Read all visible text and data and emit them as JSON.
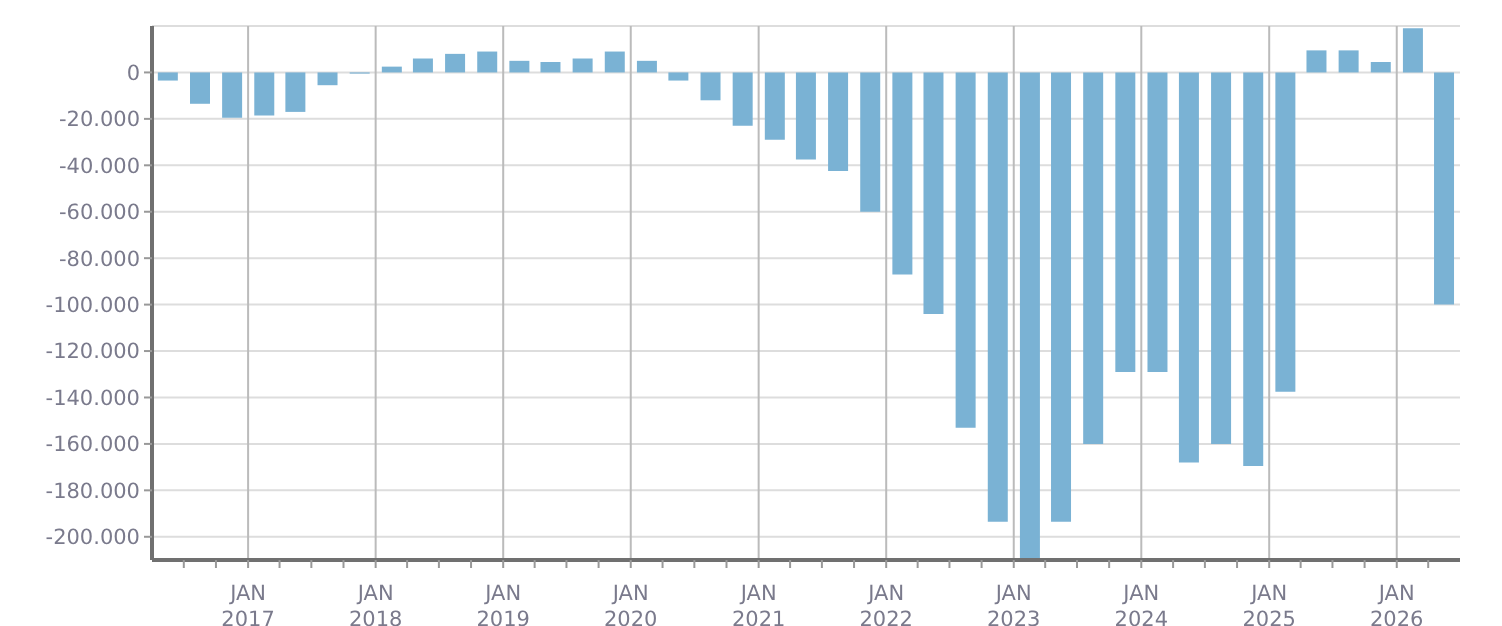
{
  "chart_data": {
    "type": "bar",
    "color": "#7ab2d4",
    "x": [
      "2016-05-15",
      "2016-08-15",
      "2016-11-15",
      "2017-02-15",
      "2017-05-15",
      "2017-08-15",
      "2017-11-15",
      "2018-02-15",
      "2018-05-15",
      "2018-08-15",
      "2018-11-15",
      "2019-02-15",
      "2019-05-15",
      "2019-08-15",
      "2019-11-15",
      "2020-02-15",
      "2020-05-15",
      "2020-08-15",
      "2020-11-15",
      "2021-02-15",
      "2021-05-15",
      "2021-08-15",
      "2021-11-15",
      "2022-02-15",
      "2022-05-15",
      "2022-08-15",
      "2022-11-15",
      "2023-02-15",
      "2023-05-15",
      "2023-08-15",
      "2023-11-15",
      "2024-02-15",
      "2024-05-15",
      "2024-08-15",
      "2024-11-15",
      "2025-02-15",
      "2025-05-15",
      "2025-08-15",
      "2025-11-15",
      "2026-02-15",
      "2026-05-15"
    ],
    "values": [
      -3500,
      -13500,
      -19500,
      -18500,
      -17000,
      -5500,
      -500,
      2500,
      6000,
      8000,
      9000,
      5000,
      4500,
      6000,
      9000,
      5000,
      -3500,
      -12000,
      -23000,
      -29000,
      -37500,
      -42500,
      -60000,
      -87000,
      -104000,
      -153000,
      -193500,
      -210000,
      -193500,
      -160000,
      -129000,
      -129000,
      -168000,
      -160000,
      -169500,
      -137500,
      9500,
      9500,
      4500,
      19000,
      -100000
    ],
    "xlim": [
      "2016-04-01",
      "2026-07-01"
    ],
    "xticks": [
      {
        "value": "2016-07-01",
        "label": null
      },
      {
        "value": "2016-10-01",
        "label": null
      },
      {
        "value": "2017-01-01",
        "label": "JAN\n2017"
      },
      {
        "value": "2017-04-01",
        "label": null
      },
      {
        "value": "2017-07-01",
        "label": null
      },
      {
        "value": "2017-10-01",
        "label": null
      },
      {
        "value": "2018-01-01",
        "label": "JAN\n2018"
      },
      {
        "value": "2018-04-01",
        "label": null
      },
      {
        "value": "2018-07-01",
        "label": null
      },
      {
        "value": "2018-10-01",
        "label": null
      },
      {
        "value": "2019-01-01",
        "label": "JAN\n2019"
      },
      {
        "value": "2019-04-01",
        "label": null
      },
      {
        "value": "2019-07-01",
        "label": null
      },
      {
        "value": "2019-10-01",
        "label": null
      },
      {
        "value": "2020-01-01",
        "label": "JAN\n2020"
      },
      {
        "value": "2020-04-01",
        "label": null
      },
      {
        "value": "2020-07-01",
        "label": null
      },
      {
        "value": "2020-10-01",
        "label": null
      },
      {
        "value": "2021-01-01",
        "label": "JAN\n2021"
      },
      {
        "value": "2021-04-01",
        "label": null
      },
      {
        "value": "2021-07-01",
        "label": null
      },
      {
        "value": "2021-10-01",
        "label": null
      },
      {
        "value": "2022-01-01",
        "label": "JAN\n2022"
      },
      {
        "value": "2022-04-01",
        "label": null
      },
      {
        "value": "2022-07-01",
        "label": null
      },
      {
        "value": "2022-10-01",
        "label": null
      },
      {
        "value": "2023-01-01",
        "label": "JAN\n2023"
      },
      {
        "value": "2023-04-01",
        "label": null
      },
      {
        "value": "2023-07-01",
        "label": null
      },
      {
        "value": "2023-10-01",
        "label": null
      },
      {
        "value": "2024-01-01",
        "label": "JAN\n2024"
      },
      {
        "value": "2024-04-01",
        "label": null
      },
      {
        "value": "2024-07-01",
        "label": null
      },
      {
        "value": "2024-10-01",
        "label": null
      },
      {
        "value": "2025-01-01",
        "label": "JAN\n2025"
      },
      {
        "value": "2025-04-01",
        "label": null
      },
      {
        "value": "2025-07-01",
        "label": null
      },
      {
        "value": "2025-10-01",
        "label": null
      },
      {
        "value": "2026-01-01",
        "label": "JAN\n2026"
      },
      {
        "value": "2026-04-01",
        "label": null
      }
    ],
    "ylim": [
      -210000,
      20000
    ],
    "yticks": [
      {
        "value": -200000,
        "label": "-200.000"
      },
      {
        "value": -180000,
        "label": "-180.000"
      },
      {
        "value": -160000,
        "label": "-160.000"
      },
      {
        "value": -140000,
        "label": "-140.000"
      },
      {
        "value": -120000,
        "label": "-120.000"
      },
      {
        "value": -100000,
        "label": "-100.000"
      },
      {
        "value": -80000,
        "label": "-80.000"
      },
      {
        "value": -60000,
        "label": "-60.000"
      },
      {
        "value": -40000,
        "label": "-40.000"
      },
      {
        "value": -20000,
        "label": "-20.000"
      },
      0
    ],
    "grid": true,
    "legend": false
  }
}
